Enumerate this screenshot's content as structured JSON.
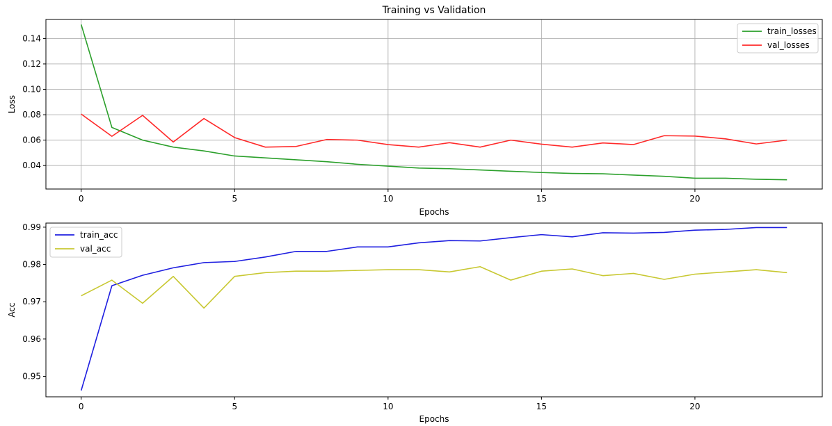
{
  "chart_data": [
    {
      "type": "line",
      "title": "Training vs Validation",
      "xlabel": "Epochs",
      "ylabel": "Loss",
      "xlim": [
        -1.15,
        24.15
      ],
      "ylim": [
        0.0215,
        0.155
      ],
      "xticks": [
        0,
        5,
        10,
        15,
        20
      ],
      "yticks": [
        0.04,
        0.06,
        0.08,
        0.1,
        0.12,
        0.14
      ],
      "ytick_labels": [
        "0.04",
        "0.06",
        "0.08",
        "0.10",
        "0.12",
        "0.14"
      ],
      "grid": true,
      "legend": "top-right",
      "x": [
        0,
        1,
        2,
        3,
        4,
        5,
        6,
        7,
        8,
        9,
        10,
        11,
        12,
        13,
        14,
        15,
        16,
        17,
        18,
        19,
        20,
        21,
        22,
        23
      ],
      "series": [
        {
          "name": "train_losses",
          "color": "#2ca02c",
          "values": [
            0.151,
            0.07,
            0.06,
            0.0545,
            0.0515,
            0.0475,
            0.046,
            0.0445,
            0.043,
            0.041,
            0.0395,
            0.038,
            0.0375,
            0.0365,
            0.0355,
            0.0345,
            0.0338,
            0.0335,
            0.0325,
            0.0315,
            0.03,
            0.03,
            0.0292,
            0.0288
          ]
        },
        {
          "name": "val_losses",
          "color": "#ff2a2a",
          "values": [
            0.0805,
            0.063,
            0.0795,
            0.0585,
            0.077,
            0.062,
            0.0545,
            0.055,
            0.0605,
            0.06,
            0.0565,
            0.0545,
            0.058,
            0.0545,
            0.06,
            0.0568,
            0.0545,
            0.0578,
            0.0565,
            0.0635,
            0.0632,
            0.061,
            0.057,
            0.06
          ]
        }
      ]
    },
    {
      "type": "line",
      "title": "",
      "xlabel": "Epochs",
      "ylabel": "Acc",
      "xlim": [
        -1.15,
        24.15
      ],
      "ylim": [
        0.9445,
        0.9911
      ],
      "xticks": [
        0,
        5,
        10,
        15,
        20
      ],
      "yticks": [
        0.95,
        0.96,
        0.97,
        0.98,
        0.99
      ],
      "ytick_labels": [
        "0.95",
        "0.96",
        "0.97",
        "0.98",
        "0.99"
      ],
      "grid": false,
      "legend": "top-left",
      "x": [
        0,
        1,
        2,
        3,
        4,
        5,
        6,
        7,
        8,
        9,
        10,
        11,
        12,
        13,
        14,
        15,
        16,
        17,
        18,
        19,
        20,
        21,
        22,
        23
      ],
      "series": [
        {
          "name": "train_acc",
          "color": "#1f1fe0",
          "values": [
            0.9462,
            0.9743,
            0.9771,
            0.9791,
            0.9805,
            0.9808,
            0.982,
            0.9835,
            0.9835,
            0.9847,
            0.9847,
            0.9858,
            0.9864,
            0.9863,
            0.9872,
            0.988,
            0.9874,
            0.9885,
            0.9884,
            0.9886,
            0.9892,
            0.9894,
            0.9899,
            0.9899
          ]
        },
        {
          "name": "val_acc",
          "color": "#c8c832",
          "values": [
            0.9716,
            0.9758,
            0.9696,
            0.9768,
            0.9683,
            0.9768,
            0.9778,
            0.9782,
            0.9782,
            0.9784,
            0.9786,
            0.9786,
            0.978,
            0.9794,
            0.9758,
            0.9782,
            0.9788,
            0.977,
            0.9776,
            0.976,
            0.9774,
            0.978,
            0.9786,
            0.9778
          ]
        }
      ]
    }
  ]
}
